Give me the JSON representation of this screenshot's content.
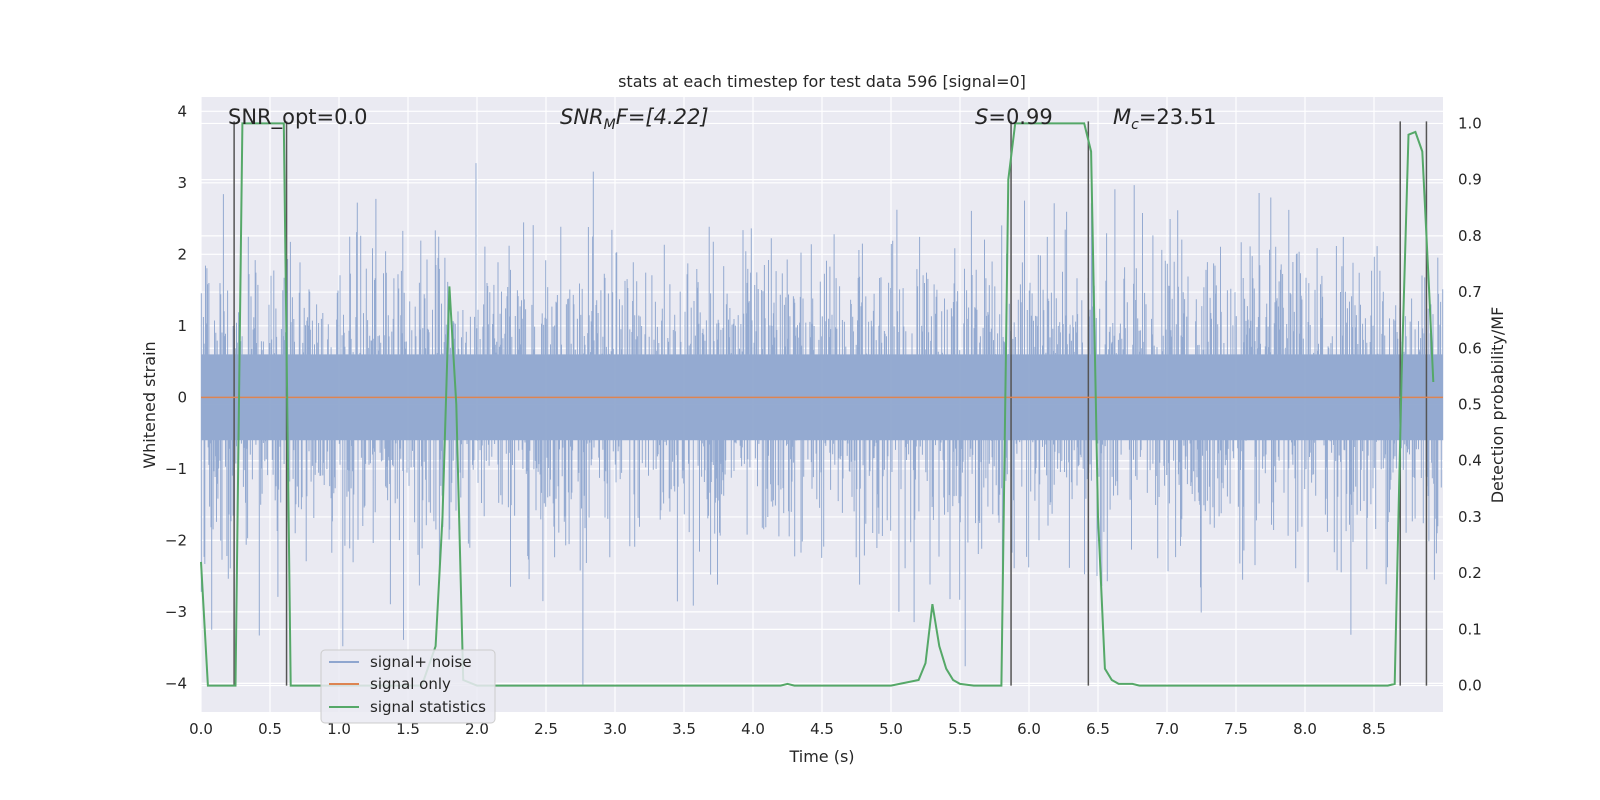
{
  "chart_data": {
    "type": "line",
    "title": "stats at each timestep for test data 596 [signal=0]",
    "xlabel": "Time (s)",
    "ylabel": "Whitened strain",
    "y2label": "Detection probability/MF",
    "xlim": [
      0,
      9
    ],
    "ylim": [
      -4.4,
      4.2
    ],
    "y2lim": [
      -0.047,
      1.047
    ],
    "xticks": [
      "0.0",
      "0.5",
      "1.0",
      "1.5",
      "2.0",
      "2.5",
      "3.0",
      "3.5",
      "4.0",
      "4.5",
      "5.0",
      "5.5",
      "6.0",
      "6.5",
      "7.0",
      "7.5",
      "8.0",
      "8.5"
    ],
    "yticks": [
      "4",
      "3",
      "2",
      "1",
      "0",
      "−1",
      "−2",
      "−3",
      "−4"
    ],
    "y2ticks": [
      "1.0",
      "0.9",
      "0.8",
      "0.7",
      "0.6",
      "0.5",
      "0.4",
      "0.3",
      "0.2",
      "0.1",
      "0.0"
    ],
    "grid": true,
    "legend_position": "lower-left",
    "annotations": {
      "snr_opt": "SNR_opt=0.0",
      "snr_mf_base": "SNR",
      "snr_mf_sub": "M",
      "snr_mf_rest": "F=[4.22]",
      "s_base": "S",
      "s_rest": "=0.99",
      "mc_base": "M",
      "mc_sub": "c",
      "mc_rest": "=23.51"
    },
    "series": [
      {
        "name": "signal+ noise",
        "color": "#8fa6cf",
        "noise_sigma": 1.0,
        "x_range": [
          0,
          9
        ]
      },
      {
        "name": "signal only",
        "color": "#dd8452",
        "values_constant": 0.0
      },
      {
        "name": "signal statistics",
        "color": "#55a868",
        "x": [
          0,
          0.05,
          0.1,
          0.15,
          0.2,
          0.25,
          0.3,
          0.35,
          0.4,
          0.45,
          0.5,
          0.55,
          0.6,
          0.65,
          0.7,
          0.75,
          0.8,
          0.9,
          1.0,
          1.2,
          1.4,
          1.6,
          1.7,
          1.75,
          1.8,
          1.85,
          1.9,
          2.0,
          2.1,
          2.2,
          2.5,
          3.0,
          3.5,
          4.0,
          4.2,
          4.25,
          4.3,
          4.5,
          5.0,
          5.2,
          5.25,
          5.3,
          5.35,
          5.4,
          5.45,
          5.5,
          5.6,
          5.8,
          5.85,
          5.9,
          5.95,
          6.0,
          6.3,
          6.35,
          6.4,
          6.45,
          6.5,
          6.55,
          6.6,
          6.65,
          6.7,
          6.75,
          6.8,
          7.0,
          7.5,
          8.0,
          8.5,
          8.6,
          8.65,
          8.7,
          8.75,
          8.8,
          8.85,
          8.9,
          8.93
        ],
        "y": [
          0.22,
          0.0,
          0.0,
          0.0,
          0.0,
          0.0,
          1.0,
          1.0,
          1.0,
          1.0,
          1.0,
          1.0,
          1.0,
          0.0,
          0.0,
          0.0,
          0.0,
          0.0,
          0.0,
          0.0,
          0.0,
          0.0,
          0.07,
          0.3,
          0.71,
          0.5,
          0.01,
          0.0,
          0.0,
          0.0,
          0.0,
          0.0,
          0.0,
          0.0,
          0.0,
          0.003,
          0.0,
          0.0,
          0.0,
          0.01,
          0.04,
          0.145,
          0.07,
          0.03,
          0.01,
          0.003,
          0.0,
          0.0,
          0.9,
          1.0,
          1.0,
          1.0,
          1.0,
          1.0,
          1.0,
          0.95,
          0.3,
          0.03,
          0.01,
          0.003,
          0.003,
          0.003,
          0.0,
          0.0,
          0.0,
          0.0,
          0.0,
          0.0,
          0.003,
          0.55,
          0.98,
          0.985,
          0.95,
          0.7,
          0.54
        ]
      }
    ],
    "vertical_markers": [
      0.24,
      0.62,
      5.87,
      6.43,
      8.69,
      8.88
    ]
  }
}
